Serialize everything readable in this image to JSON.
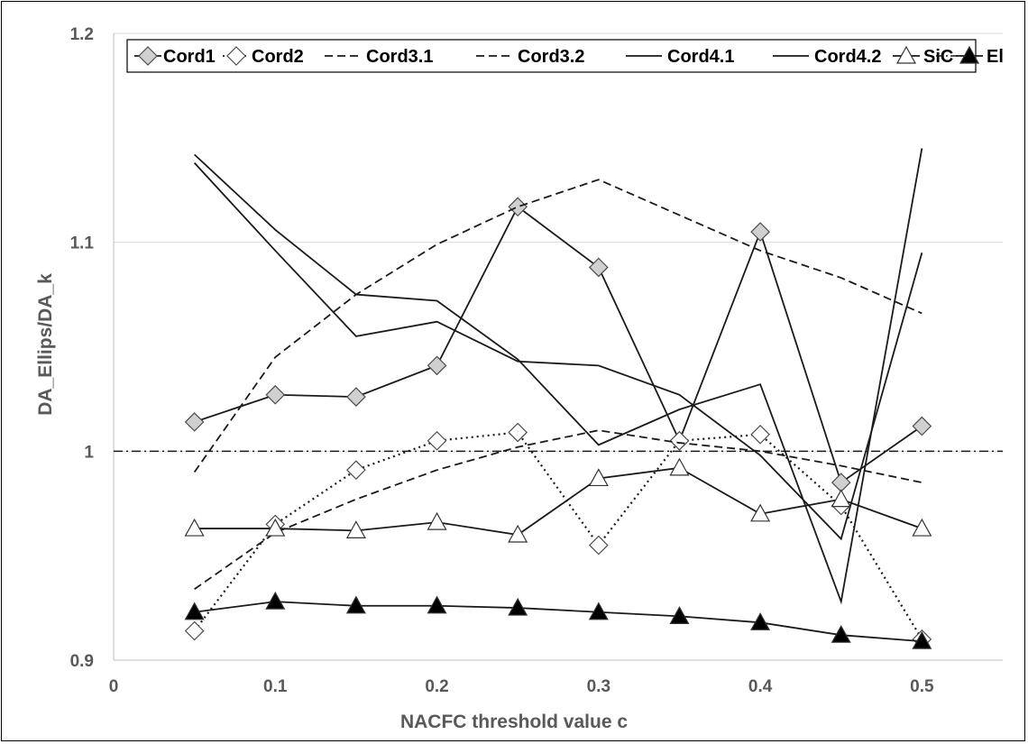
{
  "chart_data": {
    "type": "line",
    "title": "",
    "xlabel": "NACFC threshold value c",
    "ylabel": "DA_Ellips/DA_k",
    "xlim": [
      0,
      0.55
    ],
    "ylim": [
      0.9,
      1.2
    ],
    "x_ticks": [
      "0",
      "0.1",
      "0.2",
      "0.3",
      "0.4",
      "0.5"
    ],
    "y_ticks": [
      "0.9",
      "1",
      "1.1",
      "1.2"
    ],
    "grid": "horizontal",
    "legend_position": "top",
    "x": [
      0.05,
      0.1,
      0.15,
      0.2,
      0.25,
      0.3,
      0.35,
      0.4,
      0.45,
      0.5
    ],
    "series": [
      {
        "name": "Cord1",
        "style": "solid",
        "marker": "diamond-gray",
        "color": "#1a1a1a",
        "values": [
          1.014,
          1.027,
          1.026,
          1.041,
          1.117,
          1.088,
          1.005,
          1.105,
          0.985,
          1.012
        ]
      },
      {
        "name": "Cord2",
        "style": "dotted",
        "marker": "diamond-white",
        "color": "#1a1a1a",
        "values": [
          0.914,
          0.965,
          0.991,
          1.005,
          1.009,
          0.955,
          1.005,
          1.008,
          0.974,
          0.91
        ]
      },
      {
        "name": "Cord3.1",
        "style": "dashed",
        "marker": "none",
        "color": "#1a1a1a",
        "values": [
          0.99,
          1.045,
          1.075,
          1.099,
          1.117,
          1.13,
          1.113,
          1.096,
          1.083,
          1.066
        ]
      },
      {
        "name": "Cord3.2",
        "style": "dashed",
        "marker": "none",
        "color": "#1a1a1a",
        "values": [
          0.934,
          0.961,
          0.977,
          0.991,
          1.002,
          1.01,
          1.004,
          1.0,
          0.993,
          0.985
        ]
      },
      {
        "name": "Cord4.1",
        "style": "solid",
        "marker": "none",
        "color": "#1a1a1a",
        "values": [
          1.142,
          1.106,
          1.075,
          1.072,
          1.044,
          1.003,
          1.02,
          1.032,
          0.928,
          1.145
        ]
      },
      {
        "name": "Cord4.2",
        "style": "solid",
        "marker": "none",
        "color": "#1a1a1a",
        "values": [
          1.138,
          1.096,
          1.055,
          1.062,
          1.043,
          1.041,
          1.027,
          0.998,
          0.958,
          1.095
        ]
      },
      {
        "name": "SiC",
        "style": "solid",
        "marker": "triangle-white",
        "color": "#1a1a1a",
        "values": [
          0.963,
          0.963,
          0.962,
          0.966,
          0.96,
          0.987,
          0.992,
          0.97,
          0.977,
          0.963
        ]
      },
      {
        "name": "El",
        "style": "solid",
        "marker": "triangle-black",
        "color": "#1a1a1a",
        "values": [
          0.923,
          0.928,
          0.926,
          0.926,
          0.925,
          0.923,
          0.921,
          0.918,
          0.912,
          0.909
        ]
      }
    ],
    "reference_line": {
      "y": 1.0,
      "style": "dash-dot"
    }
  }
}
